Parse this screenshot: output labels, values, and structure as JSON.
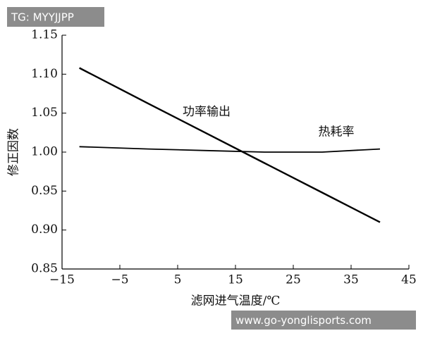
{
  "chart_data": {
    "type": "line",
    "x_label": "滤网进气温度/℃",
    "y_label": "修正因数",
    "x": [
      -12,
      0,
      10,
      20,
      30,
      40
    ],
    "series": [
      {
        "name": "功率输出",
        "color": "#000000",
        "values": [
          1.108,
          1.062,
          1.024,
          0.986,
          0.948,
          0.91
        ]
      },
      {
        "name": "热耗率",
        "color": "#000000",
        "values": [
          1.007,
          1.004,
          1.002,
          1.0,
          1.0,
          1.004
        ]
      }
    ],
    "xlim": [
      -15,
      45
    ],
    "xticks": [
      {
        "value": -15,
        "label": "−15"
      },
      {
        "value": -5,
        "label": "−5"
      },
      5,
      15,
      25,
      35,
      45
    ],
    "ylim": [
      0.85,
      1.15
    ],
    "yticks": [
      {
        "value": 0.85,
        "label": "0.85"
      },
      {
        "value": 0.9,
        "label": "0.90"
      },
      {
        "value": 0.95,
        "label": "0.95"
      },
      {
        "value": 1.0,
        "label": "1.00"
      },
      {
        "value": 1.05,
        "label": "1.05"
      },
      {
        "value": 1.1,
        "label": "1.10"
      },
      {
        "value": 1.15,
        "label": "1.15"
      }
    ],
    "grid": false
  },
  "watermarks": [
    "TG: MYYJJPP",
    "www.go-yonglisports.com"
  ]
}
